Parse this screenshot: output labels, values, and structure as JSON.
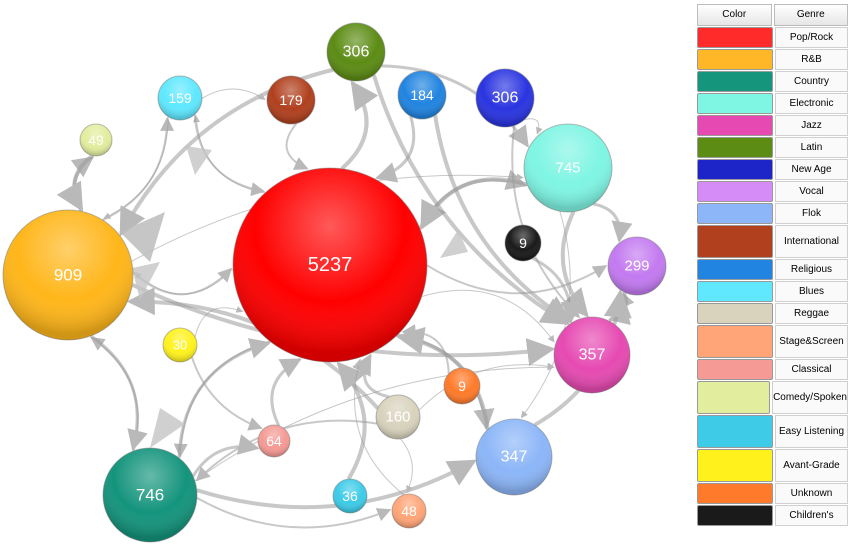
{
  "legend": {
    "header_color": "Color",
    "header_genre": "Genre",
    "items": [
      {
        "name": "Pop/Rock",
        "color": "#ff2a2a"
      },
      {
        "name": "R&B",
        "color": "#ffb627"
      },
      {
        "name": "Country",
        "color": "#16957d"
      },
      {
        "name": "Electronic",
        "color": "#7ff5e3"
      },
      {
        "name": "Jazz",
        "color": "#e64ab2"
      },
      {
        "name": "Latin",
        "color": "#5c8c14"
      },
      {
        "name": "New Age",
        "color": "#1d24c8"
      },
      {
        "name": "Vocal",
        "color": "#d58cf6"
      },
      {
        "name": "Flok",
        "color": "#8cb6f8"
      },
      {
        "name": "International",
        "color": "#b0401e"
      },
      {
        "name": "Religious",
        "color": "#2184e0"
      },
      {
        "name": "Blues",
        "color": "#5fe8ff"
      },
      {
        "name": "Reggae",
        "color": "#d9d3bd"
      },
      {
        "name": "Stage&Screen",
        "color": "#ffa578"
      },
      {
        "name": "Classical",
        "color": "#f59a94"
      },
      {
        "name": "Comedy/Spoken",
        "color": "#e2ed9d"
      },
      {
        "name": "Easy Listening",
        "color": "#3dcbe8"
      },
      {
        "name": "Avant-Grade",
        "color": "#fff21c"
      },
      {
        "name": "Unknown",
        "color": "#ff7a2a"
      },
      {
        "name": "Children's",
        "color": "#1a1a1a"
      }
    ]
  },
  "nodes": [
    {
      "id": "poprock",
      "label": "5237",
      "color": "#ff0000"
    },
    {
      "id": "rnb",
      "label": "909",
      "color": "#ffb61a"
    },
    {
      "id": "country",
      "label": "746",
      "color": "#14947c"
    },
    {
      "id": "electronic",
      "label": "745",
      "color": "#7ff5e3"
    },
    {
      "id": "jazz",
      "label": "357",
      "color": "#e64ab2"
    },
    {
      "id": "latin",
      "label": "306",
      "color": "#5c8c14"
    },
    {
      "id": "newage",
      "label": "306",
      "color": "#2a34e0"
    },
    {
      "id": "vocal",
      "label": "299",
      "color": "#c37af0"
    },
    {
      "id": "flok",
      "label": "347",
      "color": "#8cb6f8"
    },
    {
      "id": "international",
      "label": "179",
      "color": "#b0401e"
    },
    {
      "id": "religious",
      "label": "184",
      "color": "#2184e0"
    },
    {
      "id": "blues",
      "label": "159",
      "color": "#5fe8ff"
    },
    {
      "id": "reggae",
      "label": "160",
      "color": "#d9d3bd"
    },
    {
      "id": "stage",
      "label": "48",
      "color": "#ffa578"
    },
    {
      "id": "classical",
      "label": "64",
      "color": "#f59a94"
    },
    {
      "id": "comedy",
      "label": "49",
      "color": "#e2ed9d"
    },
    {
      "id": "easy",
      "label": "36",
      "color": "#3dcbe8"
    },
    {
      "id": "avant",
      "label": "30",
      "color": "#fff21c"
    },
    {
      "id": "unknown",
      "label": "9",
      "color": "#ff7a2a"
    },
    {
      "id": "children",
      "label": "9",
      "color": "#1a1a1a"
    }
  ],
  "edges": [
    [
      "poprock",
      "rnb"
    ],
    [
      "rnb",
      "poprock"
    ],
    [
      "poprock",
      "electronic"
    ],
    [
      "electronic",
      "poprock"
    ],
    [
      "poprock",
      "jazz"
    ],
    [
      "poprock",
      "vocal"
    ],
    [
      "poprock",
      "flok"
    ],
    [
      "poprock",
      "latin"
    ],
    [
      "poprock",
      "blues"
    ],
    [
      "poprock",
      "country"
    ],
    [
      "country",
      "poprock"
    ],
    [
      "country",
      "flok"
    ],
    [
      "country",
      "jazz"
    ],
    [
      "country",
      "rnb"
    ],
    [
      "rnb",
      "country"
    ],
    [
      "rnb",
      "jazz"
    ],
    [
      "rnb",
      "electronic"
    ],
    [
      "rnb",
      "blues"
    ],
    [
      "rnb",
      "comedy"
    ],
    [
      "comedy",
      "rnb"
    ],
    [
      "blues",
      "rnb"
    ],
    [
      "blues",
      "poprock"
    ],
    [
      "latin",
      "electronic"
    ],
    [
      "latin",
      "rnb"
    ],
    [
      "newage",
      "electronic"
    ],
    [
      "newage",
      "jazz"
    ],
    [
      "electronic",
      "vocal"
    ],
    [
      "electronic",
      "jazz"
    ],
    [
      "electronic",
      "flok"
    ],
    [
      "jazz",
      "vocal"
    ],
    [
      "vocal",
      "jazz"
    ],
    [
      "flok",
      "vocal"
    ],
    [
      "reggae",
      "jazz"
    ],
    [
      "reggae",
      "country"
    ],
    [
      "reggae",
      "poprock"
    ],
    [
      "reggae",
      "rnb"
    ],
    [
      "reggae",
      "stage"
    ],
    [
      "international",
      "poprock"
    ],
    [
      "religious",
      "poprock"
    ],
    [
      "religious",
      "jazz"
    ],
    [
      "avant",
      "poprock"
    ],
    [
      "avant",
      "classical"
    ],
    [
      "classical",
      "poprock"
    ],
    [
      "easy",
      "poprock"
    ],
    [
      "stage",
      "poprock"
    ],
    [
      "unknown",
      "poprock"
    ],
    [
      "children",
      "jazz"
    ],
    [
      "latin",
      "jazz"
    ],
    [
      "blues",
      "international"
    ],
    [
      "country",
      "stage"
    ],
    [
      "country",
      "classical"
    ],
    [
      "flok",
      "poprock"
    ]
  ]
}
